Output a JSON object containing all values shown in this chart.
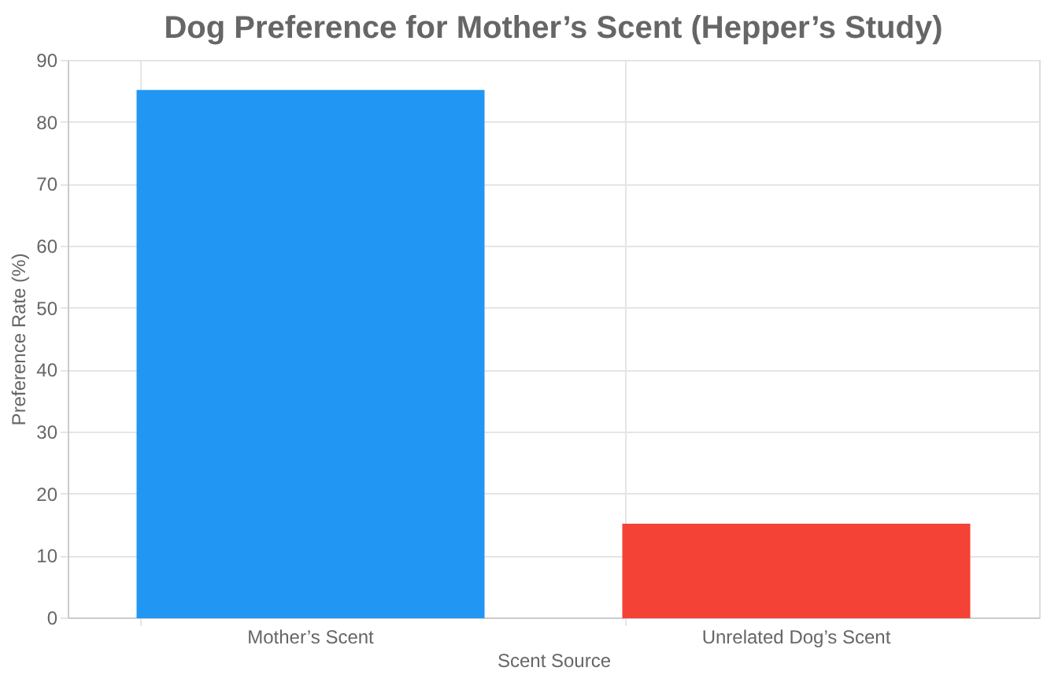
{
  "chart_data": {
    "type": "bar",
    "title": "Dog Preference for Mother’s Scent (Hepper’s Study)",
    "categories": [
      "Mother’s Scent",
      "Unrelated Dog’s Scent"
    ],
    "series": [
      {
        "values": [
          85,
          15
        ],
        "colors": [
          "#2196f3",
          "#f44336"
        ]
      }
    ],
    "xlabel": "Scent Source",
    "ylabel": "Preference Rate (%)",
    "ylim": [
      0,
      90
    ],
    "yticks": [
      0,
      10,
      20,
      30,
      40,
      50,
      60,
      70,
      80,
      90
    ],
    "grid": true
  }
}
